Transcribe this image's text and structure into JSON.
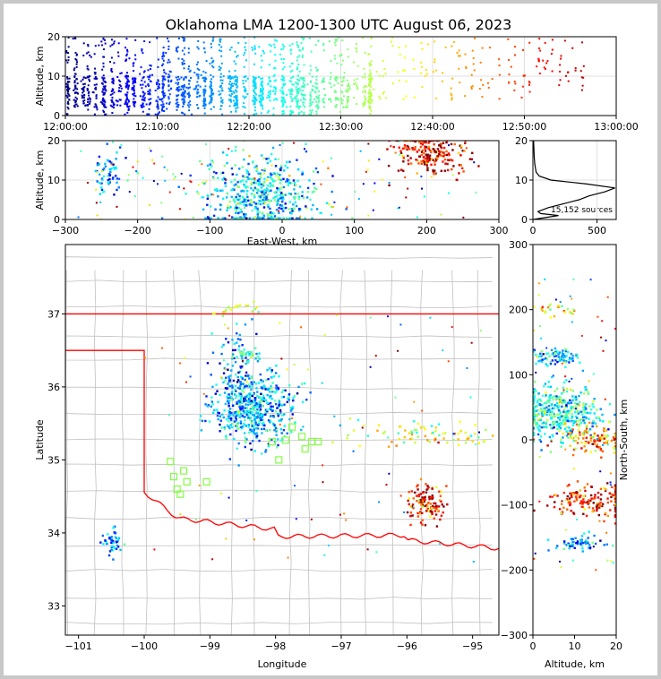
{
  "figure": {
    "title": "Oklahoma LMA 1200-1300 UTC August 06, 2023",
    "source_count_label": "15,152 sources"
  },
  "colors": {
    "background": "#c8c8c8",
    "state_border": "#ff0000",
    "county_lines": "#c0c0c0",
    "station_marker": "#80ff40",
    "source_colormap": "jet (blue = early, red = late)"
  },
  "chart_data": [
    {
      "id": "time_height",
      "type": "scatter",
      "ylabel": "Altitude, km",
      "xlabel": "",
      "x_ticks": [
        "12:00:00",
        "12:10:00",
        "12:20:00",
        "12:30:00",
        "12:40:00",
        "12:50:00",
        "13:00:00"
      ],
      "xlim": [
        "12:00:00",
        "13:00:00"
      ],
      "ylim": [
        0,
        20
      ],
      "y_ticks": [
        0,
        10,
        20
      ],
      "grid": true,
      "color_by": "time",
      "note_visible_pattern": "dense vertical columns of sources 12:00-12:33, sparse 12:35-12:57",
      "clusters": [
        {
          "t_min": 0,
          "t_max": 10,
          "alt_min": 0.5,
          "alt_max": 20,
          "density": "high"
        },
        {
          "t_min": 10,
          "t_max": 20,
          "alt_min": 0.5,
          "alt_max": 20,
          "density": "high"
        },
        {
          "t_min": 20,
          "t_max": 28,
          "alt_min": 0.5,
          "alt_max": 20,
          "density": "high"
        },
        {
          "t_min": 28,
          "t_max": 34,
          "alt_min": 1,
          "alt_max": 20,
          "density": "medium"
        },
        {
          "t_min": 34,
          "t_max": 45,
          "alt_min": 2,
          "alt_max": 20,
          "density": "low"
        },
        {
          "t_min": 45,
          "t_max": 57,
          "alt_min": 2,
          "alt_max": 20,
          "density": "low"
        }
      ]
    },
    {
      "id": "ew_height",
      "type": "scatter",
      "xlabel": "East-West, km",
      "ylabel": "Altitude, km",
      "xlim": [
        -300,
        300
      ],
      "ylim": [
        0,
        20
      ],
      "x_ticks": [
        -300,
        -200,
        -100,
        0,
        100,
        200,
        300
      ],
      "y_ticks": [
        0,
        10,
        20
      ],
      "grid": true,
      "clusters": [
        {
          "x_center": -240,
          "x_spread": 10,
          "alt_center": 12,
          "alt_spread": 3,
          "t": 0.25,
          "n": 60
        },
        {
          "x_center": -30,
          "x_spread": 40,
          "alt_center": 6,
          "alt_spread": 5,
          "t": 0.35,
          "n": 500
        },
        {
          "x_center": 205,
          "x_spread": 25,
          "alt_center": 17,
          "alt_spread": 3,
          "t": 0.9,
          "n": 200
        }
      ]
    },
    {
      "id": "altitude_histogram",
      "type": "line",
      "xlim": [
        0,
        650
      ],
      "ylim": [
        0,
        20
      ],
      "x_ticks": [
        0,
        500
      ],
      "y_ticks": [
        0,
        10,
        20
      ],
      "profile": [
        {
          "alt": 0,
          "count": 0
        },
        {
          "alt": 1,
          "count": 200
        },
        {
          "alt": 1.5,
          "count": 60
        },
        {
          "alt": 2,
          "count": 40
        },
        {
          "alt": 3,
          "count": 120
        },
        {
          "alt": 4,
          "count": 240
        },
        {
          "alt": 5,
          "count": 360
        },
        {
          "alt": 6,
          "count": 440
        },
        {
          "alt": 7,
          "count": 560
        },
        {
          "alt": 8,
          "count": 640
        },
        {
          "alt": 9,
          "count": 420
        },
        {
          "alt": 10,
          "count": 140
        },
        {
          "alt": 11,
          "count": 50
        },
        {
          "alt": 12,
          "count": 25
        },
        {
          "alt": 14,
          "count": 15
        },
        {
          "alt": 16,
          "count": 10
        },
        {
          "alt": 18,
          "count": 8
        },
        {
          "alt": 20,
          "count": 5
        }
      ]
    },
    {
      "id": "plan_view",
      "type": "scatter",
      "xlabel": "Longitude",
      "ylabel": "Latitude",
      "xlim": [
        -101.2,
        -94.6
      ],
      "ylim": [
        32.6,
        37.95
      ],
      "x_ticks": [
        -101,
        -100,
        -99,
        -98,
        -97,
        -96,
        -95
      ],
      "y_ticks": [
        33,
        34,
        35,
        36,
        37
      ],
      "clusters": [
        {
          "lon": -98.3,
          "lat": 35.7,
          "dlon": 0.3,
          "dlat": 0.25,
          "t": 0.3,
          "n": 500
        },
        {
          "lon": -98.6,
          "lat": 36.1,
          "dlon": 0.2,
          "dlat": 0.4,
          "t": 0.25,
          "n": 100
        },
        {
          "lon": -98.45,
          "lat": 36.42,
          "dlon": 0.1,
          "dlat": 0.05,
          "t": 0.4,
          "n": 40
        },
        {
          "lon": -100.5,
          "lat": 33.87,
          "dlon": 0.07,
          "dlat": 0.1,
          "t": 0.25,
          "n": 50
        },
        {
          "lon": -95.7,
          "lat": 34.4,
          "dlon": 0.15,
          "dlat": 0.12,
          "t": 0.85,
          "n": 120
        },
        {
          "lon": -95.6,
          "lat": 35.35,
          "dlon": 0.6,
          "dlat": 0.1,
          "t": 0.6,
          "n": 80
        },
        {
          "lon": -98.6,
          "lat": 37.08,
          "dlon": 0.2,
          "dlat": 0.05,
          "t": 0.6,
          "n": 20
        }
      ],
      "stations": [
        [
          -99.6,
          34.98
        ],
        [
          -99.4,
          34.85
        ],
        [
          -99.55,
          34.77
        ],
        [
          -99.35,
          34.7
        ],
        [
          -99.5,
          34.6
        ],
        [
          -99.45,
          34.53
        ],
        [
          -99.05,
          34.7
        ],
        [
          -98.05,
          35.25
        ],
        [
          -97.85,
          35.27
        ],
        [
          -97.75,
          35.45
        ],
        [
          -97.6,
          35.32
        ],
        [
          -97.45,
          35.25
        ],
        [
          -97.35,
          35.25
        ],
        [
          -97.95,
          35.0
        ],
        [
          -97.55,
          35.15
        ]
      ]
    },
    {
      "id": "ns_height",
      "type": "scatter",
      "xlabel": "Altitude, km",
      "ylabel": "North-South, km",
      "xlim": [
        0,
        20
      ],
      "ylim": [
        -300,
        300
      ],
      "x_ticks": [
        0,
        10,
        20
      ],
      "y_ticks": [
        -300,
        -200,
        -100,
        0,
        100,
        200,
        300
      ],
      "clusters": [
        {
          "alt_center": 6,
          "alt_spread": 5,
          "ns_center": 40,
          "ns_spread": 20,
          "t": 0.4,
          "n": 450
        },
        {
          "alt_center": 6,
          "alt_spread": 3,
          "ns_center": 128,
          "ns_spread": 6,
          "t": 0.3,
          "n": 80
        },
        {
          "alt_center": 15,
          "alt_spread": 4,
          "ns_center": 0,
          "ns_spread": 10,
          "t": 0.75,
          "n": 100
        },
        {
          "alt_center": 14,
          "alt_spread": 5,
          "ns_center": -95,
          "ns_spread": 12,
          "t": 0.85,
          "n": 150
        },
        {
          "alt_center": 11,
          "alt_spread": 3,
          "ns_center": -158,
          "ns_spread": 6,
          "t": 0.25,
          "n": 60
        },
        {
          "alt_center": 5,
          "alt_spread": 3,
          "ns_center": 200,
          "ns_spread": 5,
          "t": 0.6,
          "n": 25
        }
      ]
    }
  ]
}
